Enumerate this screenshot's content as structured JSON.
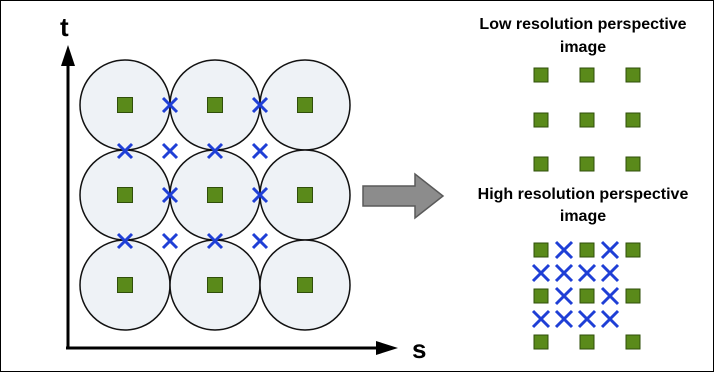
{
  "axes": {
    "vertical_label": "t",
    "horizontal_label": "s"
  },
  "low_res": {
    "title_line1": "Low resolution perspective",
    "title_line2": "image"
  },
  "high_res": {
    "title_line1": "High resolution perspective",
    "title_line2": "image"
  },
  "lens_grid": {
    "rows": 3,
    "cols": 3
  },
  "colors": {
    "circle_fill": "#eef2f6",
    "circle_stroke": "#111111",
    "square_fill": "#5a8a1a",
    "square_stroke": "#2f4f0a",
    "cross": "#1f3fd6",
    "arrow_fill": "#8c8c8c",
    "arrow_stroke": "#5a5a5a",
    "frame": "#000000"
  },
  "icons": [
    "green-square-icon",
    "blue-cross-icon",
    "right-arrow-icon"
  ]
}
